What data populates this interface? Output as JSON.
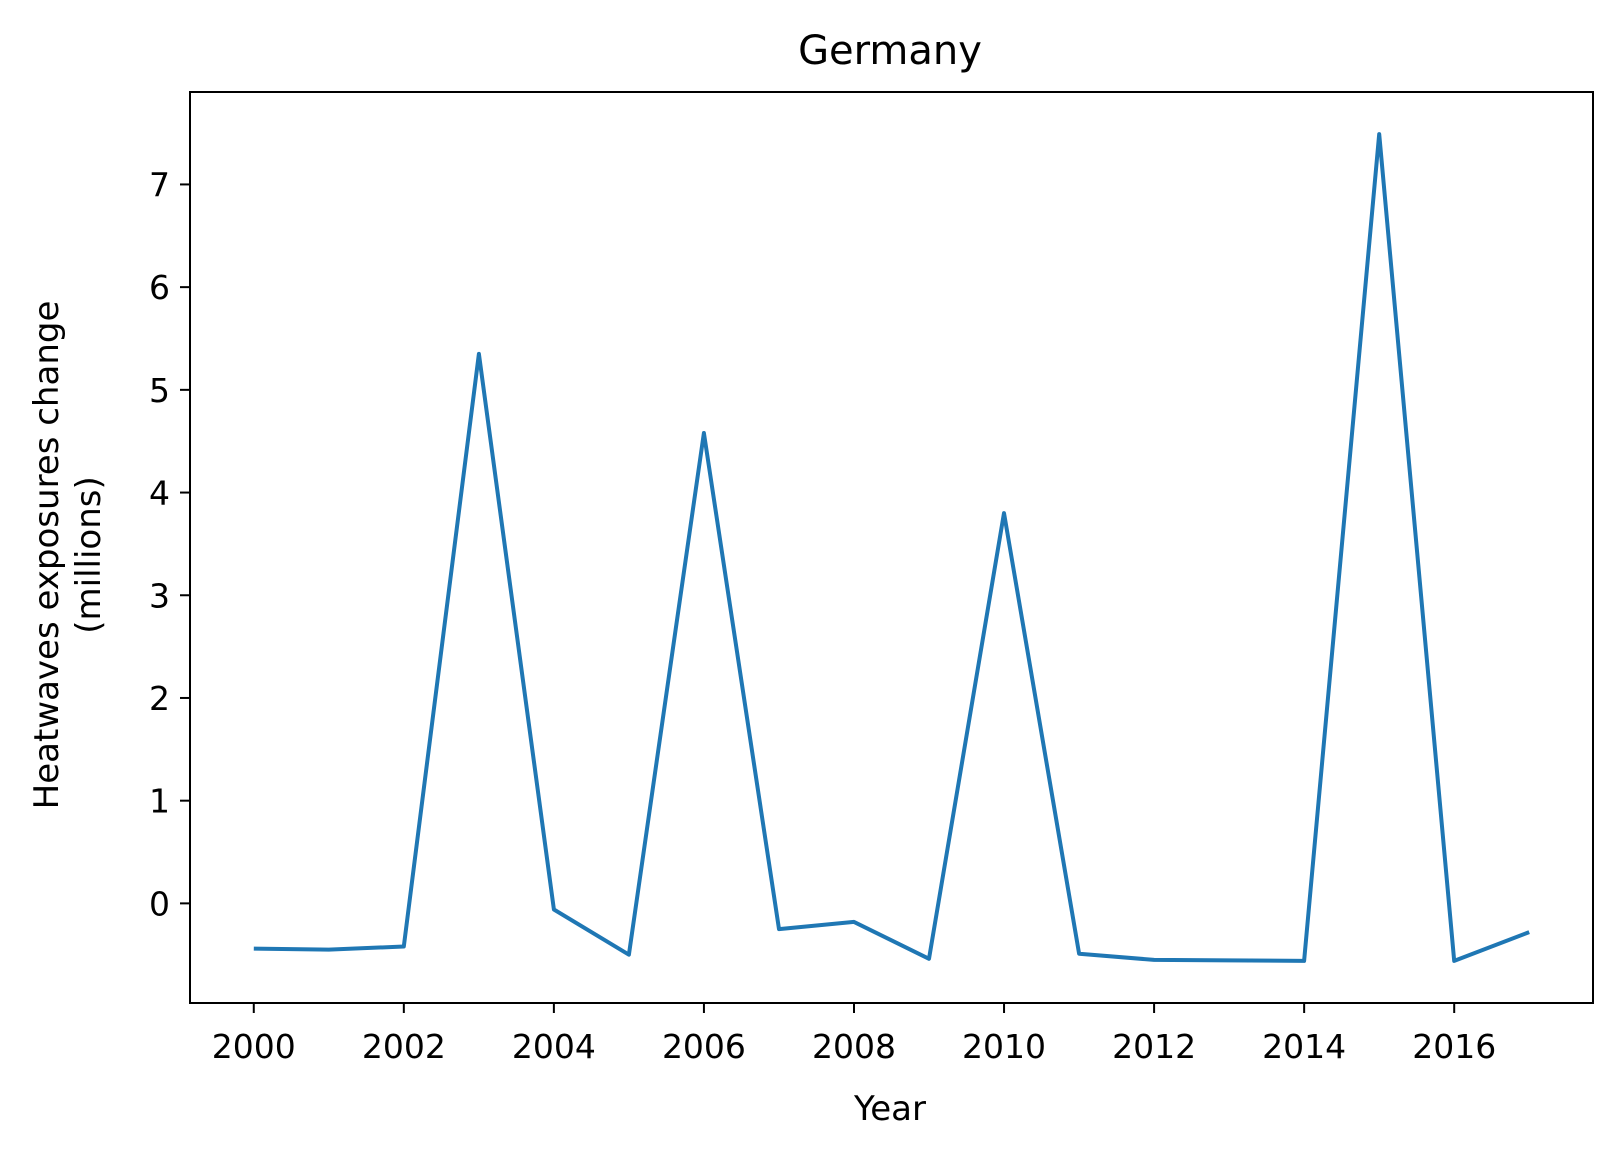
{
  "chart_data": {
    "type": "line",
    "title": "Germany",
    "xlabel": "Year",
    "ylabel_lines": [
      "Heatwaves exposures change",
      "(millions)"
    ],
    "x": [
      2000,
      2001,
      2002,
      2003,
      2004,
      2005,
      2006,
      2007,
      2008,
      2009,
      2010,
      2011,
      2012,
      2013,
      2014,
      2015,
      2016,
      2017
    ],
    "series": [
      {
        "values": [
          -0.44,
          -0.45,
          -0.42,
          5.35,
          -0.06,
          -0.5,
          4.58,
          -0.25,
          -0.18,
          -0.54,
          3.8,
          -0.49,
          -0.55,
          -0.555,
          -0.56,
          7.49,
          -0.56,
          -0.28
        ],
        "color": "#1f77b4"
      }
    ],
    "xlim": [
      1999.15,
      2017.85
    ],
    "ylim": [
      -0.97,
      7.9
    ],
    "xticks": [
      2000,
      2002,
      2004,
      2006,
      2008,
      2010,
      2012,
      2014,
      2016
    ],
    "yticks": [
      0,
      1,
      2,
      3,
      4,
      5,
      6,
      7
    ],
    "grid": false,
    "legend": "none"
  }
}
